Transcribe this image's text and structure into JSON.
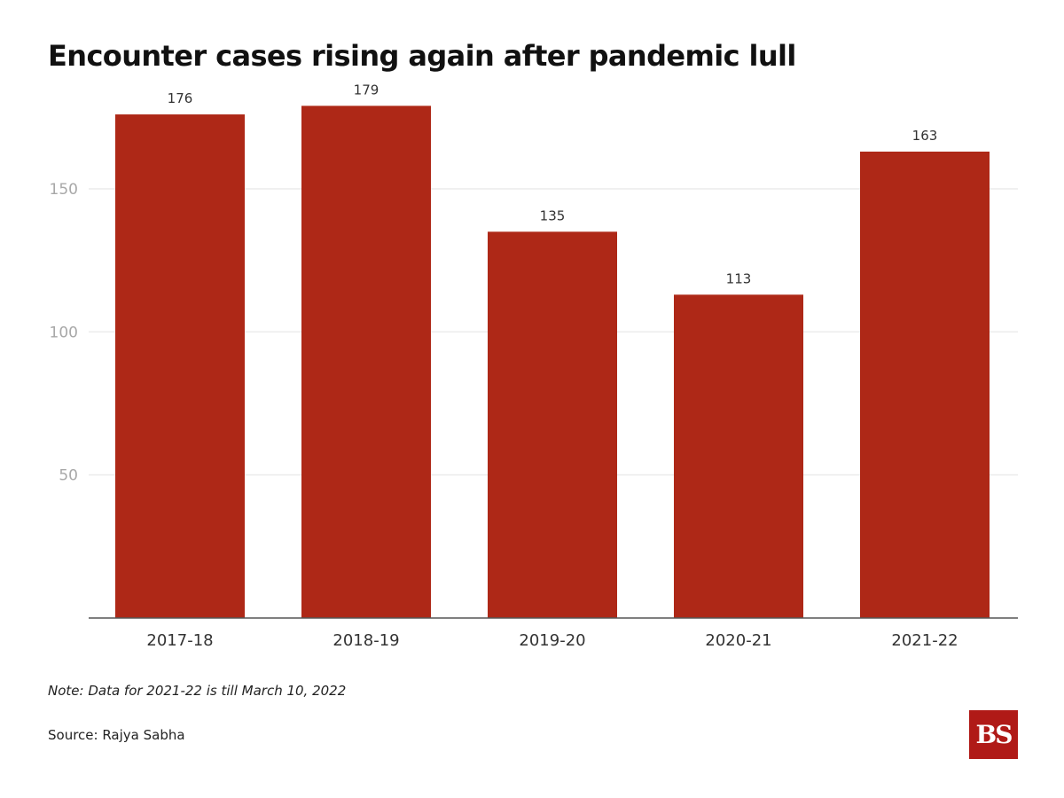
{
  "chart_data": {
    "type": "bar",
    "title": "Encounter cases rising again after pandemic lull",
    "categories": [
      "2017-18",
      "2018-19",
      "2019-20",
      "2020-21",
      "2021-22"
    ],
    "values": [
      176,
      179,
      135,
      113,
      163
    ],
    "data_labels": [
      "176",
      "179",
      "135",
      "113",
      "163"
    ],
    "yticks": [
      50,
      100,
      150
    ],
    "ylim": [
      0,
      185
    ],
    "xlabel": "",
    "ylabel": "",
    "grid": true,
    "bar_color": "#ae2817",
    "note": "Note: Data for 2021-22 is till March 10, 2022",
    "source": "Source: Rajya Sabha"
  },
  "brand": {
    "logo_text": "BS",
    "logo_color": "#b01a17"
  }
}
